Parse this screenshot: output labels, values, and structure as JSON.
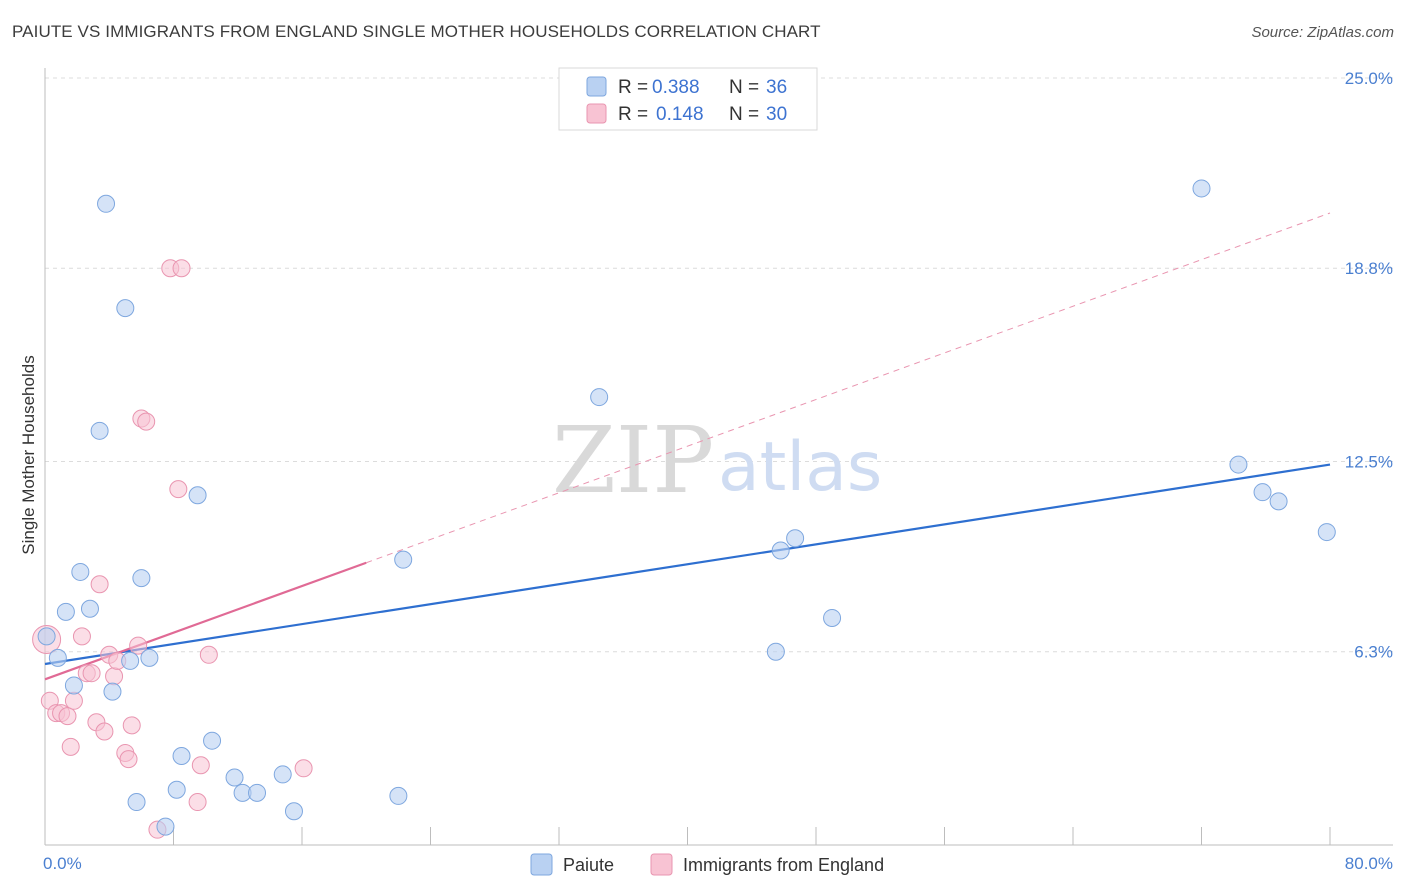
{
  "header": {
    "title": "PAIUTE VS IMMIGRANTS FROM ENGLAND SINGLE MOTHER HOUSEHOLDS CORRELATION CHART",
    "source": "Source: ZipAtlas.com"
  },
  "watermark": {
    "zip": "ZIP",
    "atlas": "atlas"
  },
  "colors": {
    "blue_fill": "#b9d1f2",
    "blue_stroke": "#7ea7df",
    "blue_line": "#2e6fd0",
    "pink_fill": "#f8c3d3",
    "pink_stroke": "#e995b0",
    "pink_line": "#e06a95",
    "grid": "#dcdcdc",
    "axis_text": "#4a7fd0"
  },
  "legend": {
    "rows": [
      {
        "r_label": "R = ",
        "r_value": "0.388",
        "n_label": "N = ",
        "n_value": "36"
      },
      {
        "r_label": "R = ",
        "r_value": "0.148",
        "n_label": "N = ",
        "n_value": "30"
      }
    ]
  },
  "chart_data": {
    "type": "scatter",
    "title": "PAIUTE VS IMMIGRANTS FROM ENGLAND SINGLE MOTHER HOUSEHOLDS CORRELATION CHART",
    "xlabel": "",
    "ylabel": "Single Mother Households",
    "xlim": [
      0,
      80
    ],
    "ylim": [
      0,
      25
    ],
    "x_tick_labels": [
      "0.0%",
      "80.0%"
    ],
    "y_ticks": [
      6.3,
      12.5,
      18.8,
      25.0
    ],
    "y_tick_labels": [
      "6.3%",
      "12.5%",
      "18.8%",
      "25.0%"
    ],
    "legend_position": "top-center",
    "series": [
      {
        "name": "Paiute",
        "r": 0.388,
        "n": 36,
        "points": [
          [
            0.1,
            6.8
          ],
          [
            0.8,
            6.1
          ],
          [
            1.3,
            7.6
          ],
          [
            1.8,
            5.2
          ],
          [
            2.2,
            8.9
          ],
          [
            2.8,
            7.7
          ],
          [
            3.4,
            13.5
          ],
          [
            3.8,
            20.9
          ],
          [
            4.2,
            5.0
          ],
          [
            5.0,
            17.5
          ],
          [
            6.0,
            8.7
          ],
          [
            6.5,
            6.1
          ],
          [
            5.3,
            6.0
          ],
          [
            5.7,
            1.4
          ],
          [
            7.5,
            0.6
          ],
          [
            8.2,
            1.8
          ],
          [
            8.5,
            2.9
          ],
          [
            9.5,
            11.4
          ],
          [
            10.4,
            3.4
          ],
          [
            11.8,
            2.2
          ],
          [
            12.3,
            1.7
          ],
          [
            13.2,
            1.7
          ],
          [
            14.8,
            2.3
          ],
          [
            15.5,
            1.1
          ],
          [
            22.3,
            9.3
          ],
          [
            22.0,
            1.6
          ],
          [
            34.5,
            14.6
          ],
          [
            45.5,
            6.3
          ],
          [
            45.8,
            9.6
          ],
          [
            46.7,
            10.0
          ],
          [
            49.0,
            7.4
          ],
          [
            72.0,
            21.4
          ],
          [
            74.3,
            12.4
          ],
          [
            75.8,
            11.5
          ],
          [
            76.8,
            11.2
          ],
          [
            79.8,
            10.2
          ]
        ],
        "trend": {
          "x_start": 0,
          "y_start": 5.9,
          "x_end": 80,
          "y_end": 12.4
        }
      },
      {
        "name": "Immigrants from England",
        "r": 0.148,
        "n": 30,
        "points": [
          [
            0.1,
            6.7
          ],
          [
            0.3,
            4.7
          ],
          [
            0.7,
            4.3
          ],
          [
            1.0,
            4.3
          ],
          [
            1.4,
            4.2
          ],
          [
            1.6,
            3.2
          ],
          [
            1.8,
            4.7
          ],
          [
            2.3,
            6.8
          ],
          [
            2.6,
            5.6
          ],
          [
            2.9,
            5.6
          ],
          [
            3.2,
            4.0
          ],
          [
            3.4,
            8.5
          ],
          [
            3.7,
            3.7
          ],
          [
            4.0,
            6.2
          ],
          [
            4.3,
            5.5
          ],
          [
            4.5,
            6.0
          ],
          [
            5.0,
            3.0
          ],
          [
            5.2,
            2.8
          ],
          [
            5.4,
            3.9
          ],
          [
            5.8,
            6.5
          ],
          [
            6.0,
            13.9
          ],
          [
            6.3,
            13.8
          ],
          [
            7.0,
            0.5
          ],
          [
            7.8,
            18.8
          ],
          [
            8.3,
            11.6
          ],
          [
            8.5,
            18.8
          ],
          [
            9.5,
            1.4
          ],
          [
            9.7,
            2.6
          ],
          [
            10.2,
            6.2
          ],
          [
            16.1,
            2.5
          ]
        ],
        "trend": {
          "x_start": 0,
          "y_start": 5.4,
          "x_end": 20,
          "y_end": 9.2
        },
        "trend_extension": {
          "x_start": 20,
          "y_start": 9.2,
          "x_end": 80,
          "y_end": 20.6
        }
      }
    ]
  },
  "bottom_legend": {
    "items": [
      {
        "label": "Paiute"
      },
      {
        "label": "Immigrants from England"
      }
    ]
  }
}
